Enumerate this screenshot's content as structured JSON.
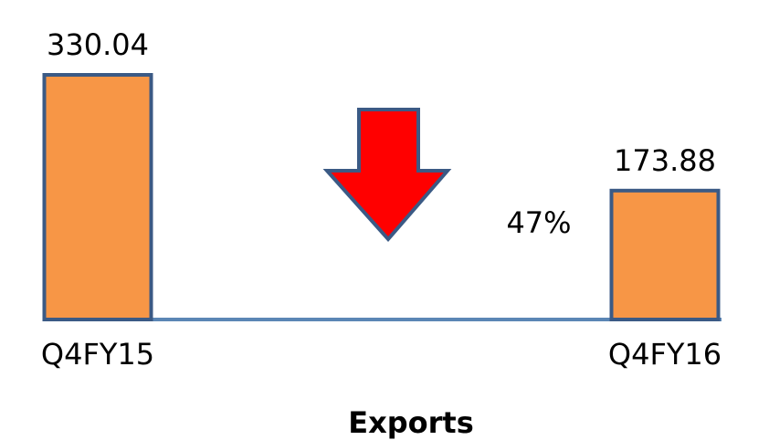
{
  "chart_data": {
    "type": "bar",
    "categories": [
      "Q4FY15",
      "Q4FY16"
    ],
    "values": [
      330.04,
      173.88
    ],
    "data_labels": [
      "330.04",
      "173.88"
    ],
    "xlabel": "Exports",
    "ylabel": "",
    "ylim": [
      0,
      330.04
    ],
    "grid": false,
    "annotation": {
      "text": "47%",
      "arrow_direction": "down",
      "arrow_color": "#ff0000"
    },
    "colors": {
      "bar_fill": "#f79646",
      "bar_stroke": "#3b5a85",
      "baseline": "#5b86b5",
      "arrow_stroke": "#3b5a85"
    }
  }
}
